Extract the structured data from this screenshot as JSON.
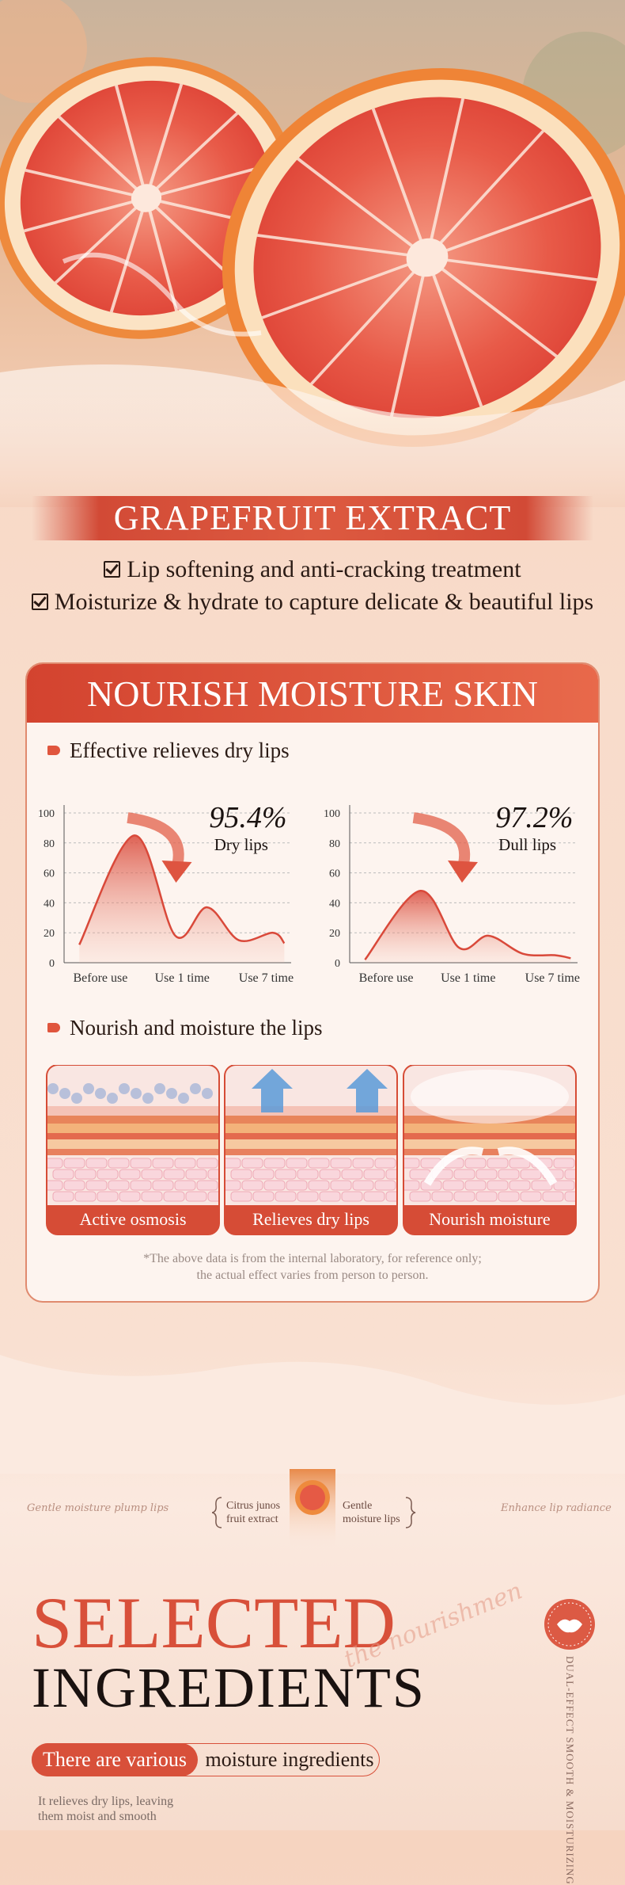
{
  "hero": {
    "title": "GRAPEFRUIT EXTRACT",
    "points": [
      "Lip softening and anti-cracking treatment",
      "Moisturize & hydrate to capture delicate & beautiful lips"
    ]
  },
  "card": {
    "title": "NOURISH MOISTURE SKIN",
    "section1": "Effective relieves dry lips",
    "section2": "Nourish and moisture the lips",
    "tiles": [
      "Active osmosis",
      "Relieves dry lips",
      "Nourish moisture"
    ],
    "note": [
      "*The above data is from the internal laboratory, for reference only;",
      "the actual effect varies from person to person."
    ]
  },
  "chart_data": [
    {
      "type": "area",
      "highlight": "95.4%",
      "annotation": "Dry lips",
      "color": "#d9493a",
      "grid": true,
      "x": [
        0.67,
        3.1,
        4.9,
        6.3,
        7.7,
        9.2,
        9.7
      ],
      "values": [
        12,
        85,
        18,
        37,
        15,
        20,
        13
      ],
      "xlim": [
        0,
        10
      ],
      "ylim": [
        0,
        100
      ],
      "xticks": [
        {
          "value": 1.6,
          "label": "Before use"
        },
        {
          "value": 5.2,
          "label": "Use 1 time"
        },
        {
          "value": 8.9,
          "label": "Use 7 time"
        }
      ],
      "yticks": [
        0,
        20,
        40,
        60,
        80,
        100
      ]
    },
    {
      "type": "area",
      "highlight": "97.2%",
      "annotation": "Dull lips",
      "color": "#d9493a",
      "grid": true,
      "x": [
        0.67,
        3.1,
        4.8,
        6.1,
        7.6,
        9.0,
        9.7
      ],
      "values": [
        2,
        48,
        10,
        18,
        6,
        5,
        3
      ],
      "xlim": [
        0,
        10
      ],
      "ylim": [
        0,
        100
      ],
      "xticks": [
        {
          "value": 1.6,
          "label": "Before use"
        },
        {
          "value": 5.2,
          "label": "Use 1 time"
        },
        {
          "value": 8.9,
          "label": "Use 7 time"
        }
      ],
      "yticks": [
        0,
        20,
        40,
        60,
        80,
        100
      ]
    }
  ],
  "ingredients": {
    "left_script": "Gentle moisture plump lips",
    "item1": [
      "Citrus junos",
      "fruit extract"
    ],
    "item2": [
      "Gentle",
      "moisture lips"
    ],
    "right_script": "Enhance lip radiance",
    "title1": "SELECTED",
    "title2": "INGREDIENTS",
    "script": "the nourishmen",
    "pill_a": "There are various",
    "pill_b": "moisture ingredients",
    "desc": [
      "It relieves dry lips, leaving",
      "them moist and smooth"
    ],
    "badge": "DUAL-EFFECT SMOOTH & MOISTURIZING"
  }
}
